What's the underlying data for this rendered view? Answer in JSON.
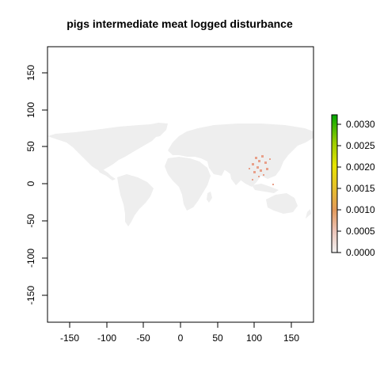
{
  "title": "pigs intermediate meat logged disturbance",
  "map": {
    "x_ticks": [
      "-150",
      "-100",
      "-50",
      "0",
      "50",
      "100",
      "150"
    ],
    "y_ticks": [
      "-150",
      "-100",
      "-50",
      "0",
      "50",
      "100",
      "150"
    ],
    "xlim": [
      -180,
      180
    ],
    "ylim": [
      -180,
      180
    ],
    "land_color": "#eeeeee",
    "hotspot_color": "#e8a08a",
    "hotspot_region": "East and Southeast Asia"
  },
  "legend": {
    "ticks": [
      "0.0000",
      "0.0005",
      "0.0010",
      "0.0015",
      "0.0020",
      "0.0025",
      "0.0030"
    ],
    "range": [
      0,
      0.0032
    ],
    "colors": [
      "#f2f2f2",
      "#ecc3b6",
      "#e39a5a",
      "#e6c02a",
      "#e8e400",
      "#9acc00",
      "#00a600"
    ],
    "placement": "right"
  }
}
